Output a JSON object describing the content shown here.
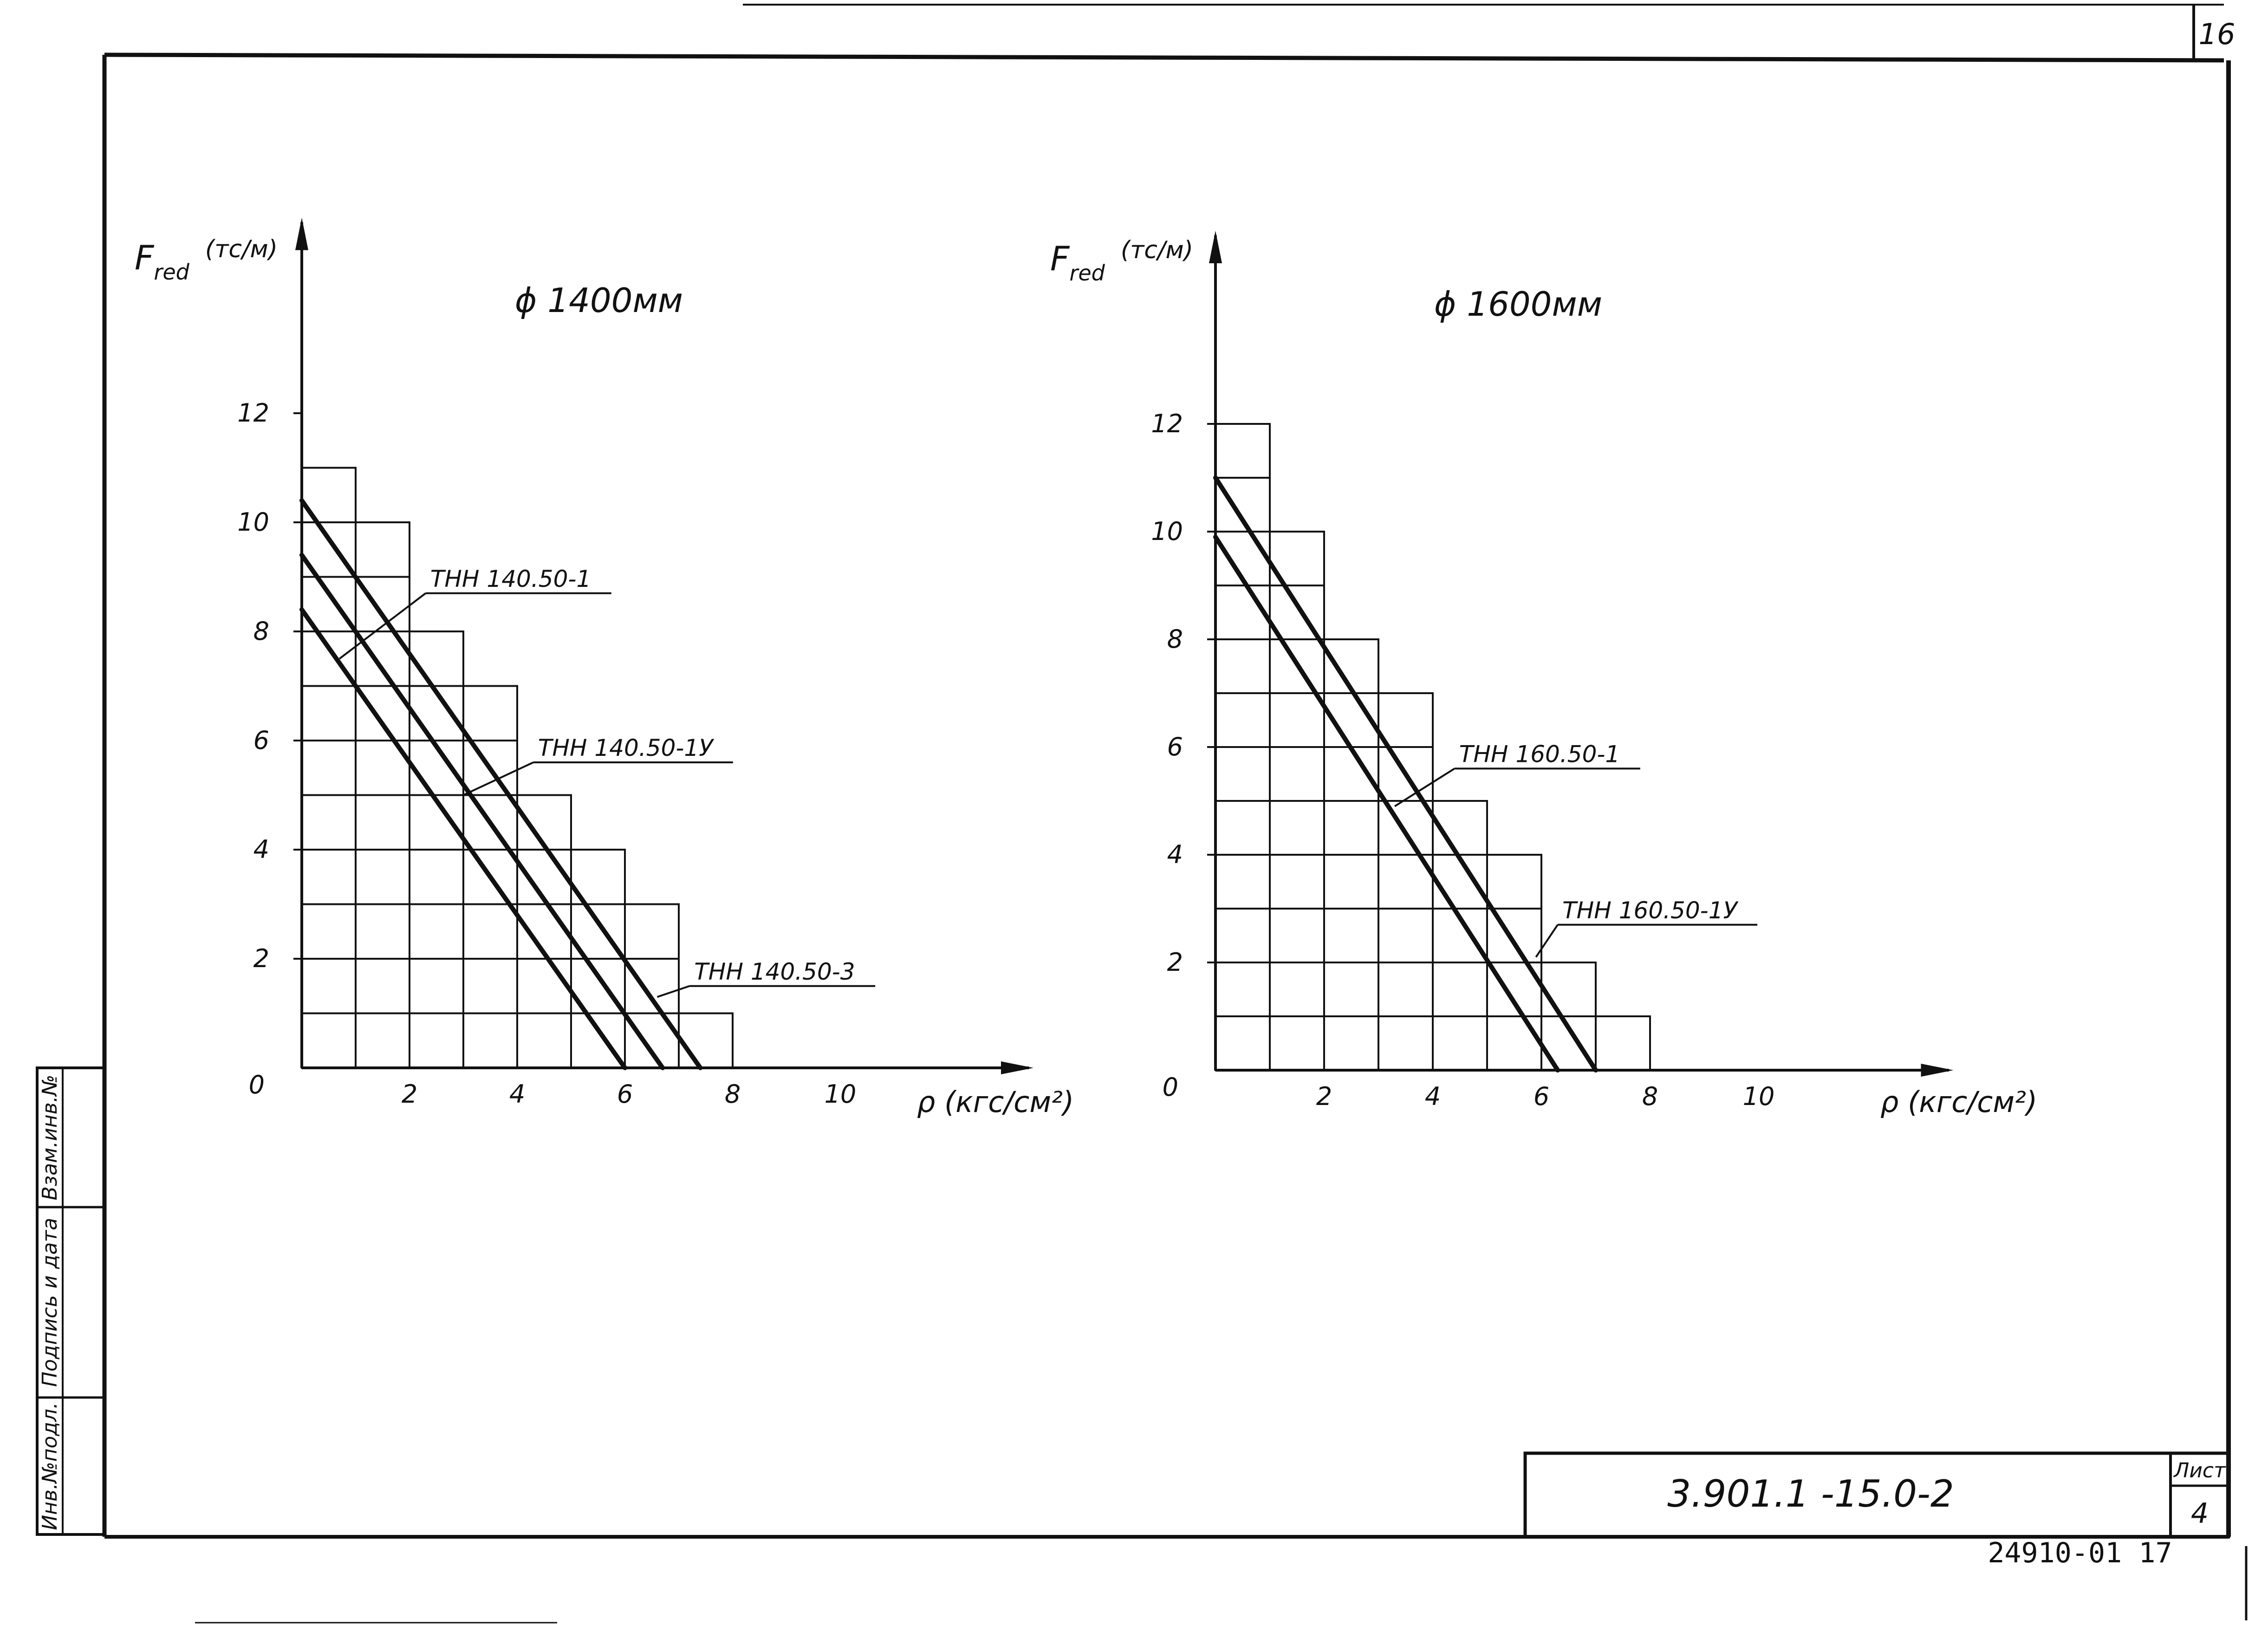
{
  "sheet": {
    "page_number": "16",
    "doc_code": "3.901.1 -15.0-2",
    "sheet_label": "Лист",
    "sheet_number": "4",
    "archive_number": "24910-01 17",
    "stamps": [
      "Инв.№подл.",
      "Подпись и дата",
      "Взам.инв.№"
    ]
  },
  "chart_data": [
    {
      "type": "line",
      "title": "ϕ 1400мм",
      "ylabel_main": "F",
      "ylabel_sub": "red",
      "ylabel_unit": "(тс/м)",
      "xlabel": "ρ (кгс/см²)",
      "xlim": [
        0,
        13.5
      ],
      "ylim": [
        0,
        15.5
      ],
      "x_ticks": [
        2,
        4,
        6,
        8,
        10
      ],
      "y_ticks": [
        2,
        4,
        6,
        8,
        10,
        12
      ],
      "origin_label": "0",
      "grid": {
        "cell_x": 1,
        "cell_y": 1,
        "max_y_by_column": [
          11,
          10,
          8,
          7,
          5,
          4,
          3,
          1
        ]
      },
      "series": [
        {
          "name": "ТНН 140.50-1",
          "x": [
            0,
            7.4
          ],
          "y": [
            10.4,
            0
          ]
        },
        {
          "name": "ТНН 140.50-1У",
          "x": [
            0,
            6.7
          ],
          "y": [
            9.4,
            0
          ]
        },
        {
          "name": "ТНН 140.50-3",
          "x": [
            0,
            6.0
          ],
          "y": [
            8.4,
            0
          ]
        }
      ],
      "annotations": [
        {
          "text": "ТНН 140.50-1",
          "label_x": 2.3,
          "label_y": 8.7,
          "target_x": 0.7,
          "target_y": 7.5
        },
        {
          "text": "ТНН 140.50-1У",
          "label_x": 4.3,
          "label_y": 5.6,
          "target_x": 3.0,
          "target_y": 5.0
        },
        {
          "text": "ТНН 140.50-3",
          "label_x": 7.2,
          "label_y": 1.5,
          "target_x": 6.6,
          "target_y": 1.3
        }
      ]
    },
    {
      "type": "line",
      "title": "ϕ 1600мм",
      "ylabel_main": "F",
      "ylabel_sub": "red",
      "ylabel_unit": "(тс/м)",
      "xlabel": "ρ (кгс/см²)",
      "xlim": [
        0,
        13.5
      ],
      "ylim": [
        0,
        15.5
      ],
      "x_ticks": [
        2,
        4,
        6,
        8,
        10
      ],
      "y_ticks": [
        2,
        4,
        6,
        8,
        10,
        12
      ],
      "origin_label": "0",
      "grid": {
        "cell_x": 1,
        "cell_y": 1,
        "max_y_by_column": [
          12,
          10,
          8,
          7,
          5,
          4,
          2,
          1
        ]
      },
      "series": [
        {
          "name": "ТНН 160.50-1",
          "x": [
            0,
            7.0
          ],
          "y": [
            11.0,
            0
          ]
        },
        {
          "name": "ТНН 160.50-1У",
          "x": [
            0,
            6.3
          ],
          "y": [
            9.9,
            0
          ]
        }
      ],
      "annotations": [
        {
          "text": "ТНН 160.50-1",
          "label_x": 4.4,
          "label_y": 5.6,
          "target_x": 3.3,
          "target_y": 4.9
        },
        {
          "text": "ТНН 160.50-1У",
          "label_x": 6.3,
          "label_y": 2.7,
          "target_x": 5.9,
          "target_y": 2.1
        }
      ]
    }
  ]
}
